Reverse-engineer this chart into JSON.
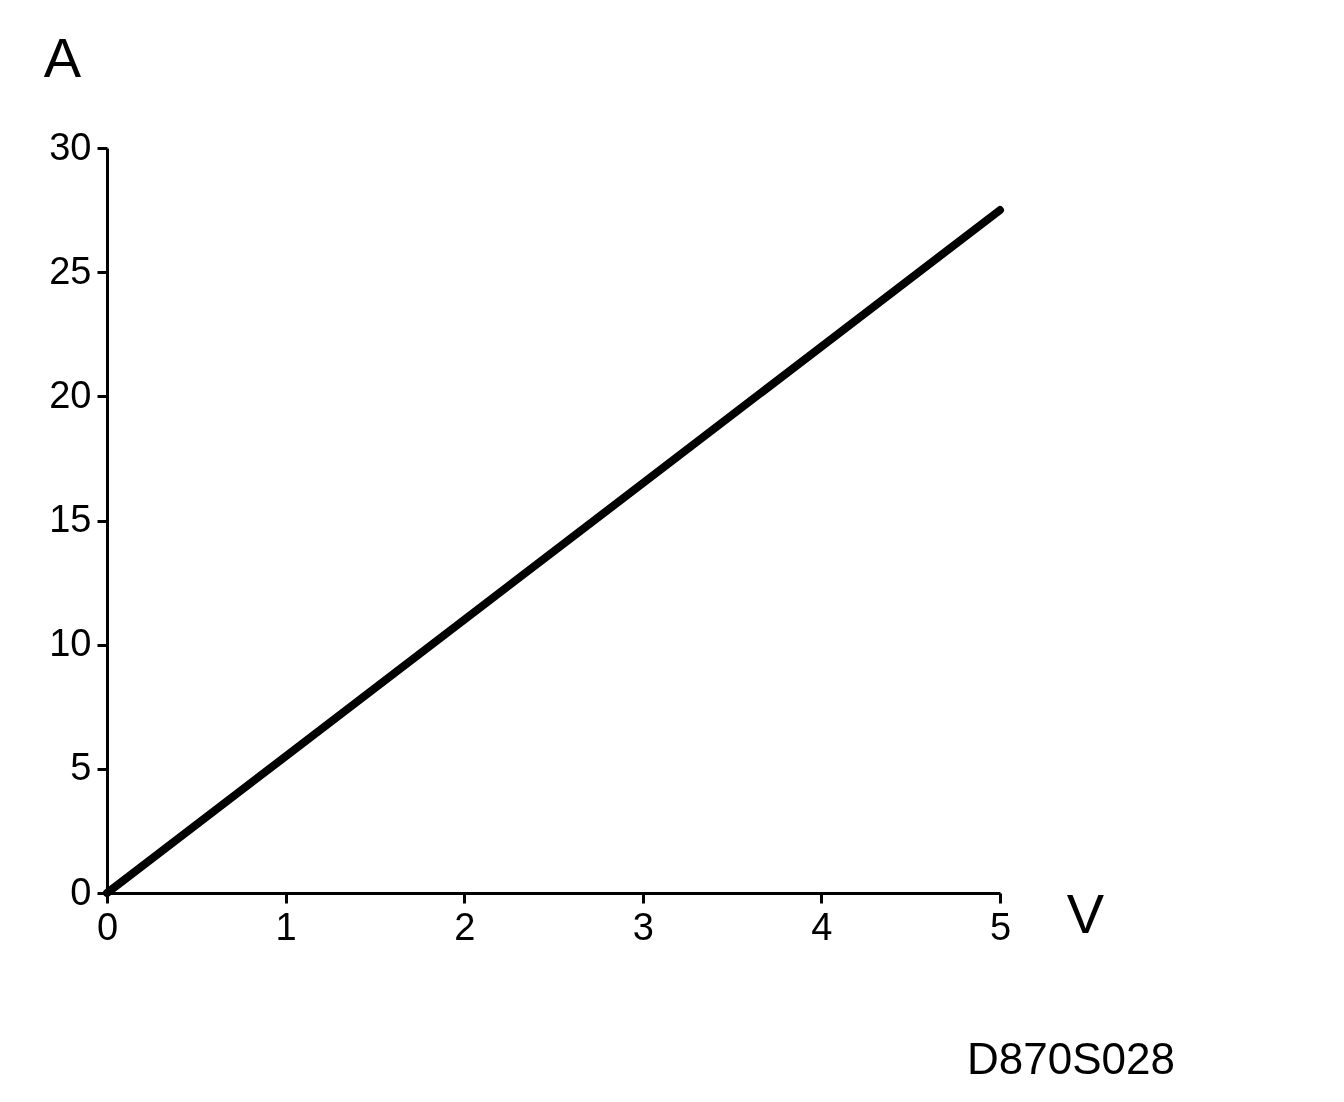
{
  "chart_data": {
    "type": "line",
    "x": [
      0,
      5
    ],
    "series": [
      {
        "color": "#000000",
        "values": [
          0,
          27.5
        ]
      }
    ],
    "xlabel": "V",
    "ylabel": "A",
    "xlim": [
      0,
      5
    ],
    "xticks": [
      0,
      1,
      2,
      3,
      4,
      5
    ],
    "ylim": [
      0,
      30
    ],
    "yticks": [
      0,
      5,
      10,
      15,
      20,
      25,
      30
    ],
    "grid": false,
    "marker": "none",
    "line_style": "solid",
    "annotations": [
      "D870S028"
    ]
  }
}
